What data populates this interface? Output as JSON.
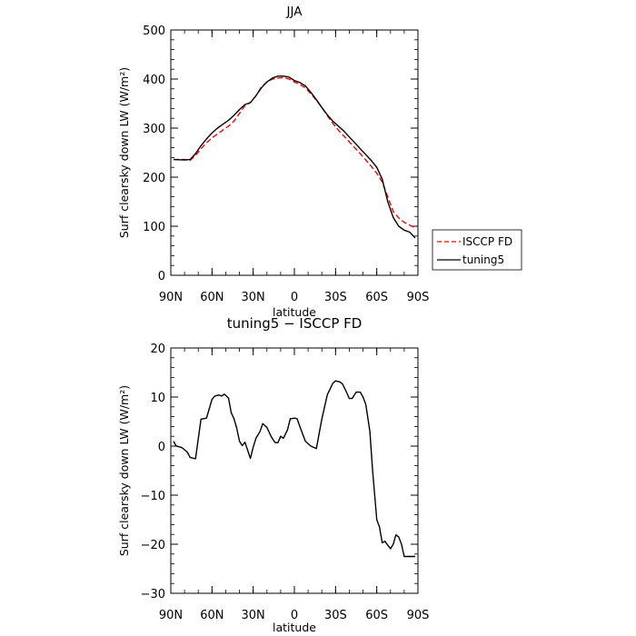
{
  "chart_data": [
    {
      "type": "line",
      "title": "JJA",
      "xlabel": "latitude",
      "ylabel": "Surf clearsky down LW (W/m²)",
      "xlim": [
        90,
        -90
      ],
      "ylim": [
        0,
        500
      ],
      "xticks": [
        90,
        60,
        30,
        0,
        -30,
        -60,
        -90
      ],
      "xtick_labels": [
        "90N",
        "60N",
        "30N",
        "0",
        "30S",
        "60S",
        "90S"
      ],
      "yticks": [
        0,
        100,
        200,
        300,
        400,
        500
      ],
      "ytick_labels": [
        "0",
        "100",
        "200",
        "300",
        "400",
        "500"
      ],
      "legend": {
        "placement": "outside-right"
      },
      "series": [
        {
          "name": "ISCCP FD",
          "color": "#ff0000",
          "dash": "dashed",
          "x": [
            88,
            80,
            76,
            72,
            68,
            64,
            60,
            56,
            52,
            48,
            44,
            40,
            36,
            32,
            28,
            24,
            20,
            16,
            12,
            8,
            4,
            0,
            -4,
            -8,
            -12,
            -16,
            -20,
            -24,
            -28,
            -32,
            -36,
            -40,
            -44,
            -48,
            -52,
            -56,
            -60,
            -64,
            -68,
            -72,
            -76,
            -80,
            -84,
            -88
          ],
          "y": [
            236,
            236,
            234,
            244,
            258,
            270,
            280,
            288,
            296,
            304,
            314,
            330,
            346,
            352,
            366,
            384,
            394,
            400,
            402,
            403,
            400,
            394,
            389,
            382,
            370,
            357,
            342,
            325,
            310,
            296,
            284,
            272,
            260,
            248,
            235,
            222,
            208,
            190,
            160,
            130,
            117,
            108,
            102,
            97
          ]
        },
        {
          "name": "tuning5",
          "color": "#000000",
          "dash": "solid",
          "x": [
            88,
            80,
            76,
            72,
            68,
            64,
            60,
            56,
            52,
            48,
            44,
            40,
            36,
            32,
            28,
            24,
            20,
            16,
            12,
            8,
            4,
            0,
            -4,
            -8,
            -12,
            -16,
            -20,
            -24,
            -28,
            -32,
            -36,
            -40,
            -44,
            -48,
            -52,
            -56,
            -60,
            -64,
            -68,
            -72,
            -76,
            -80,
            -84,
            -88
          ],
          "y": [
            236,
            235,
            236,
            248,
            264,
            278,
            290,
            300,
            308,
            316,
            326,
            338,
            348,
            352,
            366,
            382,
            394,
            402,
            406,
            406,
            404,
            397,
            393,
            386,
            373,
            358,
            342,
            327,
            314,
            304,
            294,
            282,
            270,
            258,
            246,
            234,
            220,
            196,
            150,
            118,
            100,
            92,
            88,
            76
          ]
        }
      ]
    },
    {
      "type": "line",
      "title": "tuning5 − ISCCP FD",
      "xlabel": "latitude",
      "ylabel": "Surf clearsky down LW (W/m²)",
      "xlim": [
        90,
        -90
      ],
      "ylim": [
        -30,
        20
      ],
      "xticks": [
        90,
        60,
        30,
        0,
        -30,
        -60,
        -90
      ],
      "xtick_labels": [
        "90N",
        "60N",
        "30N",
        "0",
        "30S",
        "60S",
        "90S"
      ],
      "yticks": [
        -30,
        -20,
        -10,
        0,
        10,
        20
      ],
      "ytick_labels": [
        "−30",
        "−20",
        "−10",
        "0",
        "10",
        "20"
      ],
      "series": [
        {
          "name": "",
          "color": "#000000",
          "dash": "solid",
          "x": [
            88,
            86,
            82,
            78,
            76,
            72,
            68,
            66,
            64,
            60,
            58,
            55,
            53,
            51,
            48,
            46,
            44,
            42,
            40,
            38,
            36,
            32,
            30,
            28,
            25,
            23,
            20,
            17,
            14,
            12,
            10,
            8,
            5,
            3,
            2,
            0,
            -2,
            -4,
            -8,
            -12,
            -16,
            -20,
            -24,
            -28,
            -30,
            -33,
            -35,
            -38,
            -40,
            -42,
            -45,
            -48,
            -50,
            -52,
            -55,
            -57,
            -60,
            -62,
            -64,
            -66,
            -68,
            -70,
            -72,
            -74,
            -76,
            -78,
            -80,
            -82,
            -84,
            -86,
            -88
          ],
          "y": [
            1,
            0,
            -0.3,
            -1.2,
            -2.3,
            -2.6,
            5.5,
            5.6,
            5.7,
            9.5,
            10.2,
            10.4,
            10.2,
            10.6,
            9.8,
            6.8,
            5.6,
            3.7,
            1,
            0.1,
            0.8,
            -2.5,
            -0.2,
            1.6,
            3,
            4.6,
            3.8,
            2,
            0.7,
            0.7,
            2,
            1.6,
            3.3,
            5.6,
            5.6,
            5.7,
            5.6,
            4,
            1,
            0,
            -0.5,
            5.5,
            10.5,
            12.8,
            13.3,
            13.1,
            12.7,
            11,
            9.7,
            9.7,
            11,
            11,
            10,
            8.5,
            3,
            -5,
            -15,
            -16.5,
            -19.7,
            -19.4,
            -20.2,
            -20.9,
            -20,
            -18.1,
            -18.5,
            -20,
            -22.5,
            -22.5,
            -22.5,
            -22.5,
            -22.5
          ]
        }
      ]
    }
  ]
}
